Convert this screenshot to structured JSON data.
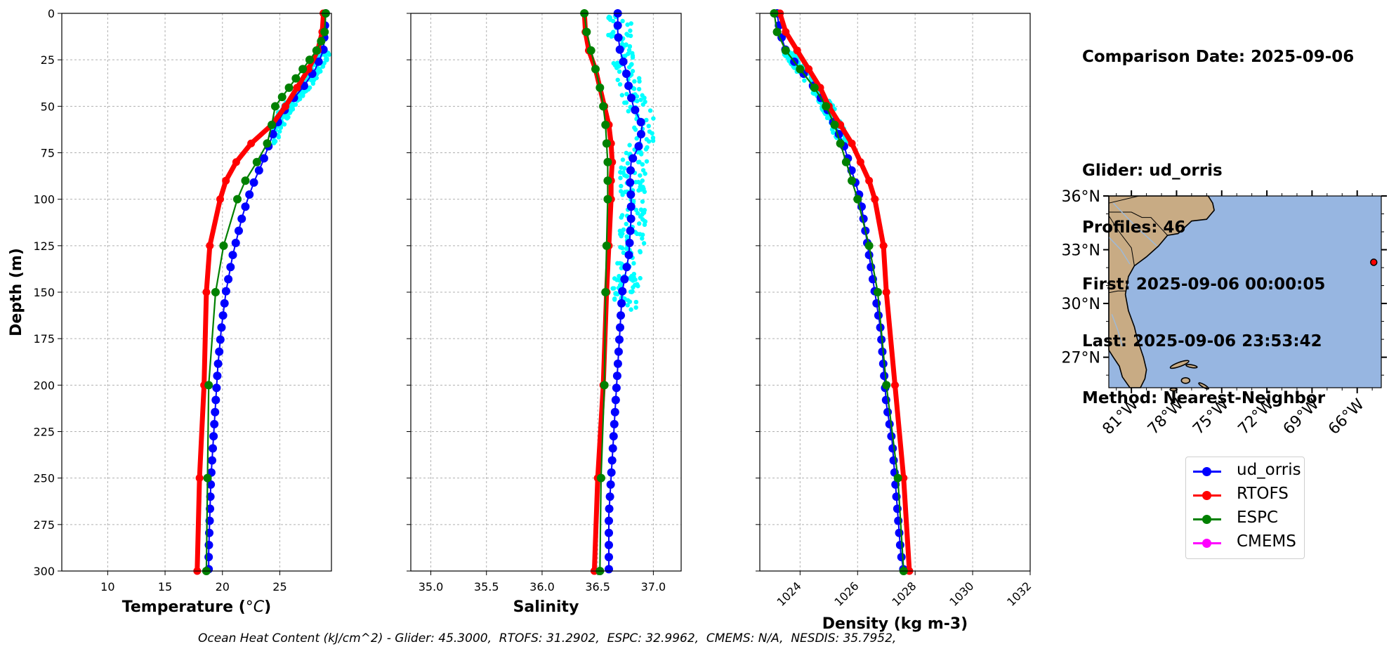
{
  "info": {
    "comparison_date": "Comparison Date: 2025-09-06",
    "glider": "Glider: ud_orris",
    "profiles": "Profiles: 46",
    "first": "First: 2025-09-06 00:00:05",
    "last": "Last: 2025-09-06 23:53:42",
    "method": "Method: Nearest-Neighbor"
  },
  "footer": "Ocean Heat Content (kJ/cm^2) - Glider: 45.3000,  RTOFS: 31.2902,  ESPC: 32.9962,  CMEMS: N/A,  NESDIS: 35.7952,",
  "colors": {
    "glider": "#0000ff",
    "rtofs": "#ff0000",
    "espc": "#008000",
    "cmems": "#ff00ff",
    "cyan": "#00ffff",
    "ocean": "#97b6e1",
    "land": "#c8ab84"
  },
  "legend": [
    {
      "label": "ud_orris",
      "color": "#0000ff"
    },
    {
      "label": "RTOFS",
      "color": "#ff0000"
    },
    {
      "label": "ESPC",
      "color": "#008000"
    },
    {
      "label": "CMEMS",
      "color": "#ff00ff"
    }
  ],
  "chart_data": [
    {
      "type": "line",
      "xlabel": "Temperature (°C)",
      "ylabel": "Depth (m)",
      "xlim": [
        6.0,
        29.5
      ],
      "ylim": [
        300,
        0
      ],
      "xticks": [
        10,
        15,
        20,
        25
      ],
      "yticks": [
        0,
        25,
        50,
        75,
        100,
        125,
        150,
        175,
        200,
        225,
        250,
        275,
        300
      ],
      "grid": true,
      "series": [
        {
          "name": "ud_orris",
          "depth": [
            0,
            10,
            20,
            30,
            40,
            50,
            60,
            70,
            80,
            90,
            100,
            110,
            120,
            130,
            140,
            150,
            170,
            190,
            210,
            230,
            250,
            270,
            290,
            300
          ],
          "values": [
            29.0,
            28.9,
            28.8,
            28.1,
            27.0,
            25.6,
            24.7,
            24.1,
            23.5,
            22.8,
            22.2,
            21.7,
            21.3,
            20.9,
            20.6,
            20.3,
            19.9,
            19.6,
            19.4,
            19.2,
            19.0,
            18.9,
            18.8,
            18.8
          ]
        },
        {
          "name": "RTOFS",
          "depth": [
            0,
            10,
            20,
            30,
            40,
            50,
            60,
            70,
            80,
            90,
            100,
            125,
            150,
            200,
            250,
            300
          ],
          "values": [
            28.8,
            28.7,
            28.3,
            27.5,
            26.5,
            25.5,
            24.3,
            22.5,
            21.2,
            20.3,
            19.8,
            18.9,
            18.6,
            18.4,
            18.0,
            17.8
          ]
        },
        {
          "name": "ESPC",
          "depth": [
            0,
            10,
            15,
            20,
            25,
            30,
            35,
            40,
            45,
            50,
            60,
            70,
            80,
            90,
            100,
            125,
            150,
            200,
            250,
            300
          ],
          "values": [
            29.0,
            28.9,
            28.6,
            28.2,
            27.6,
            27.0,
            26.4,
            25.8,
            25.2,
            24.6,
            24.3,
            23.9,
            23.0,
            22.0,
            21.3,
            20.1,
            19.4,
            18.8,
            18.7,
            18.6
          ]
        },
        {
          "name": "ud_orris scatter",
          "description": "cyan scatter of individual profiles",
          "depth_range": [
            20,
            70
          ],
          "x_range": [
            24.5,
            29.3
          ]
        }
      ]
    },
    {
      "type": "line",
      "xlabel": "Salinity",
      "ylabel": "",
      "xlim": [
        34.82,
        37.25
      ],
      "ylim": [
        300,
        0
      ],
      "xticks": [
        35.0,
        35.5,
        36.0,
        36.5,
        37.0
      ],
      "grid": true,
      "series": [
        {
          "name": "ud_orris",
          "depth": [
            0,
            10,
            20,
            30,
            40,
            50,
            60,
            70,
            80,
            90,
            100,
            110,
            120,
            130,
            140,
            150,
            170,
            190,
            210,
            230,
            250,
            270,
            290,
            300
          ],
          "values": [
            36.68,
            36.68,
            36.7,
            36.75,
            36.78,
            36.82,
            36.9,
            36.88,
            36.8,
            36.79,
            36.8,
            36.8,
            36.79,
            36.78,
            36.75,
            36.72,
            36.7,
            36.68,
            36.66,
            36.64,
            36.62,
            36.6,
            36.6,
            36.6
          ]
        },
        {
          "name": "RTOFS",
          "depth": [
            0,
            10,
            20,
            30,
            40,
            50,
            60,
            70,
            80,
            90,
            100,
            125,
            150,
            200,
            250,
            300
          ],
          "values": [
            36.38,
            36.39,
            36.42,
            36.48,
            36.52,
            36.56,
            36.6,
            36.62,
            36.63,
            36.62,
            36.62,
            36.6,
            36.58,
            36.55,
            36.5,
            36.47
          ]
        },
        {
          "name": "ESPC",
          "depth": [
            0,
            10,
            20,
            30,
            40,
            50,
            60,
            70,
            80,
            90,
            100,
            125,
            150,
            200,
            250,
            300
          ],
          "values": [
            36.38,
            36.4,
            36.44,
            36.48,
            36.52,
            36.55,
            36.57,
            36.58,
            36.59,
            36.59,
            36.59,
            36.58,
            36.57,
            36.56,
            36.53,
            36.52
          ]
        },
        {
          "name": "ud_orris scatter",
          "description": "cyan scatter of individual profiles",
          "depth_range": [
            0,
            160
          ],
          "x_range": [
            36.55,
            37.0
          ]
        }
      ]
    },
    {
      "type": "line",
      "xlabel": "Density (kg m-3)",
      "ylabel": "",
      "xlim": [
        1022.6,
        1032.0
      ],
      "ylim": [
        300,
        0
      ],
      "xticks": [
        1024,
        1026,
        1028,
        1030,
        1032
      ],
      "grid": true,
      "series": [
        {
          "name": "ud_orris",
          "depth": [
            0,
            10,
            20,
            30,
            40,
            50,
            60,
            70,
            80,
            90,
            100,
            110,
            120,
            130,
            140,
            150,
            170,
            190,
            210,
            230,
            250,
            270,
            290,
            300
          ],
          "values": [
            1023.2,
            1023.3,
            1023.5,
            1024.0,
            1024.5,
            1024.9,
            1025.2,
            1025.5,
            1025.7,
            1025.9,
            1026.1,
            1026.2,
            1026.3,
            1026.4,
            1026.5,
            1026.6,
            1026.8,
            1026.9,
            1027.0,
            1027.2,
            1027.3,
            1027.4,
            1027.5,
            1027.6
          ]
        },
        {
          "name": "RTOFS",
          "depth": [
            0,
            10,
            20,
            30,
            40,
            50,
            60,
            70,
            80,
            90,
            100,
            125,
            150,
            200,
            250,
            300
          ],
          "values": [
            1023.3,
            1023.5,
            1023.9,
            1024.3,
            1024.7,
            1025.0,
            1025.4,
            1025.8,
            1026.1,
            1026.4,
            1026.6,
            1026.9,
            1027.0,
            1027.3,
            1027.6,
            1027.8
          ]
        },
        {
          "name": "ESPC",
          "depth": [
            0,
            10,
            20,
            30,
            40,
            50,
            60,
            70,
            80,
            90,
            100,
            125,
            150,
            200,
            250,
            300
          ],
          "values": [
            1023.1,
            1023.2,
            1023.5,
            1024.0,
            1024.5,
            1024.9,
            1025.2,
            1025.4,
            1025.6,
            1025.8,
            1026.0,
            1026.4,
            1026.7,
            1027.0,
            1027.4,
            1027.6
          ]
        },
        {
          "name": "ud_orris scatter",
          "description": "cyan scatter of individual profiles",
          "depth_range": [
            20,
            70
          ],
          "x_range": [
            1023.2,
            1025.8
          ]
        }
      ]
    },
    {
      "type": "map",
      "lat_ticks": [
        "36°N",
        "33°N",
        "30°N",
        "27°N"
      ],
      "lon_ticks": [
        "81°W",
        "78°W",
        "75°W",
        "72°W",
        "69°W",
        "66°W"
      ],
      "lat_range": [
        25.3,
        36.0
      ],
      "lon_range": [
        -82.5,
        -64.4
      ],
      "marker": {
        "lon": -64.9,
        "lat": 32.3,
        "color": "#ff0000"
      }
    }
  ]
}
